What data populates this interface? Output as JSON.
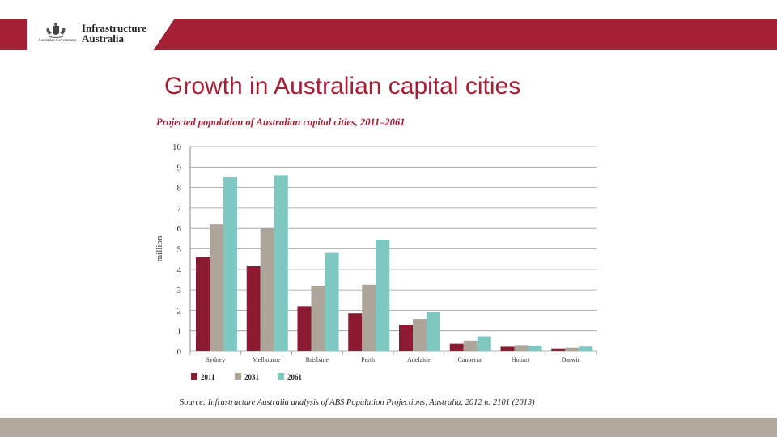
{
  "header": {
    "gov_label": "Australian Government",
    "logo_text": "Infrastructure Australia",
    "crest_icon": "coat-of-arms-icon",
    "band_color": "#a51f35"
  },
  "slide": {
    "title": "Growth in Australian capital cities"
  },
  "chart_data": {
    "type": "bar",
    "title": "Projected population of Australian capital cities, 2011–2061",
    "xlabel": "",
    "ylabel": "million",
    "ylim": [
      0,
      10
    ],
    "yticks": [
      "0",
      "1",
      "2",
      "3",
      "4",
      "5",
      "6",
      "7",
      "8",
      "9",
      "10"
    ],
    "grid": true,
    "legend_position": "bottom-left",
    "categories": [
      "Sydney",
      "Melbourne",
      "Brisbane",
      "Perth",
      "Adelaide",
      "Canberra",
      "Hobart",
      "Darwin"
    ],
    "series": [
      {
        "name": "2011",
        "color": "#8b1a32",
        "values": [
          4.6,
          4.15,
          2.2,
          1.85,
          1.3,
          0.37,
          0.22,
          0.13
        ]
      },
      {
        "name": "2031",
        "color": "#aea59a",
        "values": [
          6.2,
          6.0,
          3.2,
          3.25,
          1.58,
          0.52,
          0.3,
          0.17
        ]
      },
      {
        "name": "2061",
        "color": "#7ec8c1",
        "values": [
          8.5,
          8.6,
          4.8,
          5.45,
          1.92,
          0.73,
          0.28,
          0.23
        ]
      }
    ]
  },
  "footer": {
    "source": "Source: Infrastructure Australia analysis of ABS Population Projections, Australia, 2012 to 2101 (2013)",
    "band_color": "#b2a89d"
  }
}
